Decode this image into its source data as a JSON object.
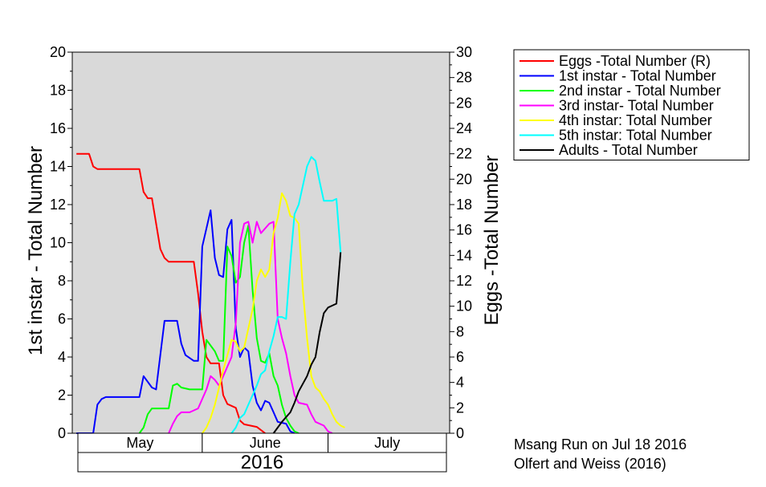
{
  "chart_data": {
    "type": "line",
    "y_left": {
      "label": "1st instar - Total Number",
      "range": [
        0,
        20
      ],
      "ticks": [
        0,
        2,
        4,
        6,
        8,
        10,
        12,
        14,
        16,
        18,
        20
      ]
    },
    "y_right": {
      "label": "Eggs -Total Number",
      "range": [
        0,
        30
      ],
      "ticks": [
        0,
        2,
        4,
        6,
        8,
        10,
        12,
        14,
        16,
        18,
        20,
        22,
        24,
        26,
        28,
        30
      ]
    },
    "x_axis": {
      "range_doy": [
        121,
        211
      ],
      "months": [
        {
          "label": "May",
          "start": 121,
          "end": 152
        },
        {
          "label": "June",
          "start": 152,
          "end": 182
        },
        {
          "label": "July",
          "start": 182,
          "end": 211
        }
      ],
      "year": "2016"
    },
    "plot_background": "#d9d9d9",
    "grid": false,
    "legend_position": "top-right outside",
    "series": [
      {
        "name": "Eggs -Total Number (R)",
        "color": "#ff0000",
        "axis": "right",
        "points": [
          [
            122,
            22
          ],
          [
            125,
            22
          ],
          [
            126,
            21
          ],
          [
            127,
            20.8
          ],
          [
            137,
            20.8
          ],
          [
            138,
            19
          ],
          [
            139,
            18.5
          ],
          [
            140,
            18.5
          ],
          [
            142,
            14.5
          ],
          [
            143,
            13.8
          ],
          [
            144,
            13.5
          ],
          [
            150,
            13.5
          ],
          [
            151,
            11
          ],
          [
            152,
            8
          ],
          [
            153,
            6
          ],
          [
            154,
            5.5
          ],
          [
            156,
            5.5
          ],
          [
            157,
            3
          ],
          [
            158,
            2.3
          ],
          [
            160,
            2
          ],
          [
            161,
            1
          ],
          [
            162,
            0.7
          ],
          [
            165,
            0.5
          ],
          [
            167,
            0
          ]
        ]
      },
      {
        "name": "1st instar - Total Number",
        "color": "#0000ff",
        "axis": "left",
        "points": [
          [
            122,
            0
          ],
          [
            126,
            0
          ],
          [
            127,
            1.5
          ],
          [
            128,
            1.8
          ],
          [
            129,
            1.9
          ],
          [
            137,
            1.9
          ],
          [
            138,
            3
          ],
          [
            140,
            2.4
          ],
          [
            141,
            2.3
          ],
          [
            143,
            5.9
          ],
          [
            146,
            5.9
          ],
          [
            147,
            4.7
          ],
          [
            148,
            4.1
          ],
          [
            150,
            3.8
          ],
          [
            151,
            3.8
          ],
          [
            152,
            9.8
          ],
          [
            154,
            11.7
          ],
          [
            155,
            9.2
          ],
          [
            156,
            8.3
          ],
          [
            157,
            8.2
          ],
          [
            158,
            10.7
          ],
          [
            159,
            11.2
          ],
          [
            160,
            5.5
          ],
          [
            161,
            4
          ],
          [
            162,
            4.5
          ],
          [
            163,
            4.3
          ],
          [
            164,
            2.5
          ],
          [
            165,
            1.6
          ],
          [
            166,
            1.2
          ],
          [
            167,
            1.7
          ],
          [
            168,
            1.6
          ],
          [
            169,
            1.1
          ],
          [
            170,
            0.6
          ],
          [
            172,
            0.5
          ],
          [
            173,
            0.1
          ],
          [
            174,
            0
          ]
        ]
      },
      {
        "name": "2nd instar - Total Number",
        "color": "#00ff00",
        "axis": "left",
        "points": [
          [
            137,
            0
          ],
          [
            138,
            0.3
          ],
          [
            139,
            1
          ],
          [
            140,
            1.3
          ],
          [
            144,
            1.3
          ],
          [
            145,
            2.5
          ],
          [
            146,
            2.6
          ],
          [
            147,
            2.4
          ],
          [
            149,
            2.3
          ],
          [
            152,
            2.3
          ],
          [
            153,
            4.9
          ],
          [
            155,
            4.3
          ],
          [
            156,
            3.8
          ],
          [
            157,
            3.8
          ],
          [
            158,
            9.8
          ],
          [
            159,
            9.3
          ],
          [
            160,
            7.9
          ],
          [
            161,
            8.2
          ],
          [
            162,
            10
          ],
          [
            163,
            10.9
          ],
          [
            164,
            7.5
          ],
          [
            165,
            5
          ],
          [
            166,
            3.8
          ],
          [
            167,
            3.7
          ],
          [
            168,
            4.2
          ],
          [
            169,
            3
          ],
          [
            170,
            2.5
          ],
          [
            171,
            1.5
          ],
          [
            172,
            0.8
          ],
          [
            173,
            0.4
          ],
          [
            174,
            0.1
          ],
          [
            175,
            0
          ]
        ]
      },
      {
        "name": "3rd instar- Total Number",
        "color": "#ff00ff",
        "axis": "left",
        "points": [
          [
            144,
            0
          ],
          [
            145,
            0.5
          ],
          [
            146,
            0.9
          ],
          [
            147,
            1.1
          ],
          [
            149,
            1.1
          ],
          [
            151,
            1.3
          ],
          [
            153,
            2.3
          ],
          [
            154,
            3
          ],
          [
            155,
            2.8
          ],
          [
            156,
            2.5
          ],
          [
            157,
            3
          ],
          [
            159,
            4
          ],
          [
            160,
            5.8
          ],
          [
            161,
            10
          ],
          [
            162,
            11
          ],
          [
            163,
            11.1
          ],
          [
            164,
            10
          ],
          [
            165,
            11.1
          ],
          [
            166,
            10.5
          ],
          [
            168,
            11
          ],
          [
            169,
            11.1
          ],
          [
            170,
            6
          ],
          [
            171,
            5
          ],
          [
            172,
            4.2
          ],
          [
            173,
            3
          ],
          [
            174,
            2
          ],
          [
            175,
            1.6
          ],
          [
            177,
            1.5
          ],
          [
            178,
            1
          ],
          [
            179,
            0.6
          ],
          [
            181,
            0.4
          ],
          [
            182,
            0.1
          ],
          [
            183,
            0
          ]
        ]
      },
      {
        "name": "4th instar: Total Number",
        "color": "#ffff00",
        "axis": "left",
        "points": [
          [
            152,
            0
          ],
          [
            153,
            0.3
          ],
          [
            154,
            0.8
          ],
          [
            155,
            1.5
          ],
          [
            156,
            2.4
          ],
          [
            157,
            3.3
          ],
          [
            158,
            4.1
          ],
          [
            159,
            4.9
          ],
          [
            160,
            4.8
          ],
          [
            161,
            4.3
          ],
          [
            162,
            4.5
          ],
          [
            163,
            5.5
          ],
          [
            164,
            6.5
          ],
          [
            165,
            8
          ],
          [
            166,
            8.6
          ],
          [
            167,
            8.2
          ],
          [
            168,
            8.6
          ],
          [
            169,
            10.5
          ],
          [
            170,
            11.3
          ],
          [
            171,
            12.6
          ],
          [
            172,
            12.2
          ],
          [
            173,
            11.4
          ],
          [
            174,
            11.3
          ],
          [
            175,
            11
          ],
          [
            176,
            7.5
          ],
          [
            177,
            5
          ],
          [
            178,
            3
          ],
          [
            179,
            2.4
          ],
          [
            180,
            2.2
          ],
          [
            181,
            1.8
          ],
          [
            182,
            1.5
          ],
          [
            183,
            1
          ],
          [
            184,
            0.6
          ],
          [
            185,
            0.4
          ],
          [
            186,
            0.3
          ]
        ]
      },
      {
        "name": "5th instar: Total Number",
        "color": "#00ffff",
        "axis": "left",
        "points": [
          [
            159,
            0
          ],
          [
            160,
            0.3
          ],
          [
            161,
            0.8
          ],
          [
            162,
            1
          ],
          [
            163,
            1.5
          ],
          [
            164,
            2
          ],
          [
            165,
            2.5
          ],
          [
            166,
            3.1
          ],
          [
            167,
            3.3
          ],
          [
            168,
            4.3
          ],
          [
            169,
            5.1
          ],
          [
            170,
            6.1
          ],
          [
            171,
            6.1
          ],
          [
            172,
            6
          ],
          [
            173,
            9
          ],
          [
            174,
            11.5
          ],
          [
            175,
            12
          ],
          [
            176,
            13
          ],
          [
            177,
            14
          ],
          [
            178,
            14.5
          ],
          [
            179,
            14.3
          ],
          [
            180,
            13.2
          ],
          [
            181,
            12.2
          ],
          [
            183,
            12.2
          ],
          [
            184,
            12.3
          ],
          [
            185,
            9.5
          ]
        ]
      },
      {
        "name": "Adults - Total Number",
        "color": "#000000",
        "axis": "left",
        "points": [
          [
            169,
            0
          ],
          [
            170,
            0.3
          ],
          [
            171,
            0.6
          ],
          [
            173,
            1.1
          ],
          [
            174,
            1.6
          ],
          [
            175,
            2.2
          ],
          [
            176,
            2.6
          ],
          [
            177,
            3
          ],
          [
            178,
            3.6
          ],
          [
            179,
            4
          ],
          [
            180,
            5.3
          ],
          [
            181,
            6.3
          ],
          [
            182,
            6.6
          ],
          [
            183,
            6.7
          ],
          [
            184,
            6.8
          ],
          [
            185,
            9.5
          ]
        ]
      }
    ]
  },
  "credits": {
    "line1": "Msang Run on Jul 18 2016",
    "line2": "Olfert and Weiss (2016)"
  }
}
